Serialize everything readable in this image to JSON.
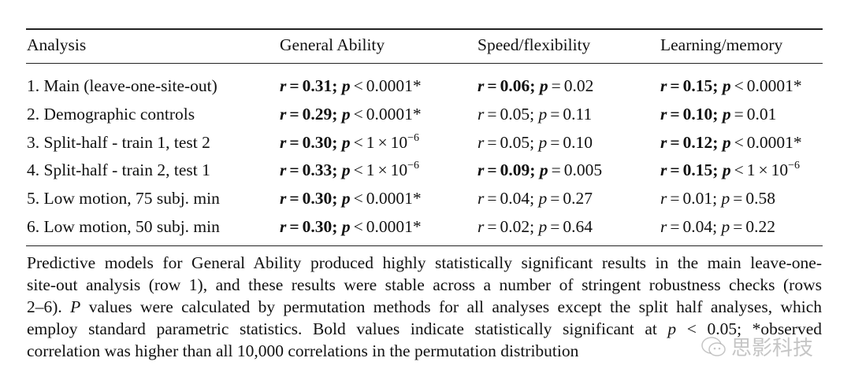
{
  "symbols": {
    "r": "r",
    "p": "p",
    "eq": "=",
    "times": "×",
    "base": "10",
    "sep": ";"
  },
  "table": {
    "headers": [
      "Analysis",
      "General Ability",
      "Speed/flexibility",
      "Learning/memory"
    ],
    "rows": [
      {
        "label": "1. Main (leave-one-site-out)",
        "cells": [
          {
            "bold": true,
            "r": "0.31",
            "op": "<",
            "p": "0.0001",
            "star": "*"
          },
          {
            "bold": true,
            "r": "0.06",
            "op": "=",
            "p": "0.02"
          },
          {
            "bold": true,
            "r": "0.15",
            "op": "<",
            "p": "0.0001",
            "star": "*"
          }
        ]
      },
      {
        "label": "2. Demographic controls",
        "cells": [
          {
            "bold": true,
            "r": "0.29",
            "op": "<",
            "p": "0.0001",
            "star": "*"
          },
          {
            "bold": false,
            "r": "0.05",
            "op": "=",
            "p": "0.11"
          },
          {
            "bold": true,
            "r": "0.10",
            "op": "=",
            "p": "0.01"
          }
        ]
      },
      {
        "label": "3. Split-half - train 1, test 2",
        "cells": [
          {
            "bold": true,
            "r": "0.30",
            "op": "<",
            "p": "1",
            "exp": "−6"
          },
          {
            "bold": false,
            "r": "0.05",
            "op": "=",
            "p": "0.10"
          },
          {
            "bold": true,
            "r": "0.12",
            "op": "<",
            "p": "0.0001",
            "star": "*"
          }
        ]
      },
      {
        "label": "4. Split-half - train 2, test 1",
        "cells": [
          {
            "bold": true,
            "r": "0.33",
            "op": "<",
            "p": "1",
            "exp": "−6"
          },
          {
            "bold": true,
            "r": "0.09",
            "op": "=",
            "p": "0.005"
          },
          {
            "bold": true,
            "r": "0.15",
            "op": "<",
            "p": "1",
            "exp": "−6"
          }
        ]
      },
      {
        "label": "5. Low motion, 75 subj. min",
        "cells": [
          {
            "bold": true,
            "r": "0.30",
            "op": "<",
            "p": "0.0001",
            "star": "*"
          },
          {
            "bold": false,
            "r": "0.04",
            "op": "=",
            "p": "0.27"
          },
          {
            "bold": false,
            "r": "0.01",
            "op": "=",
            "p": "0.58"
          }
        ]
      },
      {
        "label": "6. Low motion, 50 subj. min",
        "cells": [
          {
            "bold": true,
            "r": "0.30",
            "op": "<",
            "p": "0.0001",
            "star": "*"
          },
          {
            "bold": false,
            "r": "0.02",
            "op": "=",
            "p": "0.64"
          },
          {
            "bold": false,
            "r": "0.04",
            "op": "=",
            "p": "0.22"
          }
        ]
      }
    ]
  },
  "caption": {
    "lines": [
      [
        {
          "t": "Predictive models for General Ability produced highly statistically significant results in the main leave-one-"
        }
      ],
      [
        {
          "t": "site-out analysis (row 1), and these results were stable across a number of stringent robustness checks (rows"
        }
      ],
      [
        {
          "t": "2–6). "
        },
        {
          "t": "P",
          "i": true
        },
        {
          "t": " values were calculated by permutation methods for all analyses except the split half analyses, which"
        }
      ],
      [
        {
          "t": "employ standard parametric statistics. Bold values indicate statistically significant at "
        },
        {
          "t": "p",
          "i": true
        },
        {
          "t": " < 0.05; *observed"
        }
      ],
      [
        {
          "t": "correlation was higher than all 10,000 correlations in the permutation distribution"
        }
      ]
    ]
  },
  "watermark": "思影科技"
}
